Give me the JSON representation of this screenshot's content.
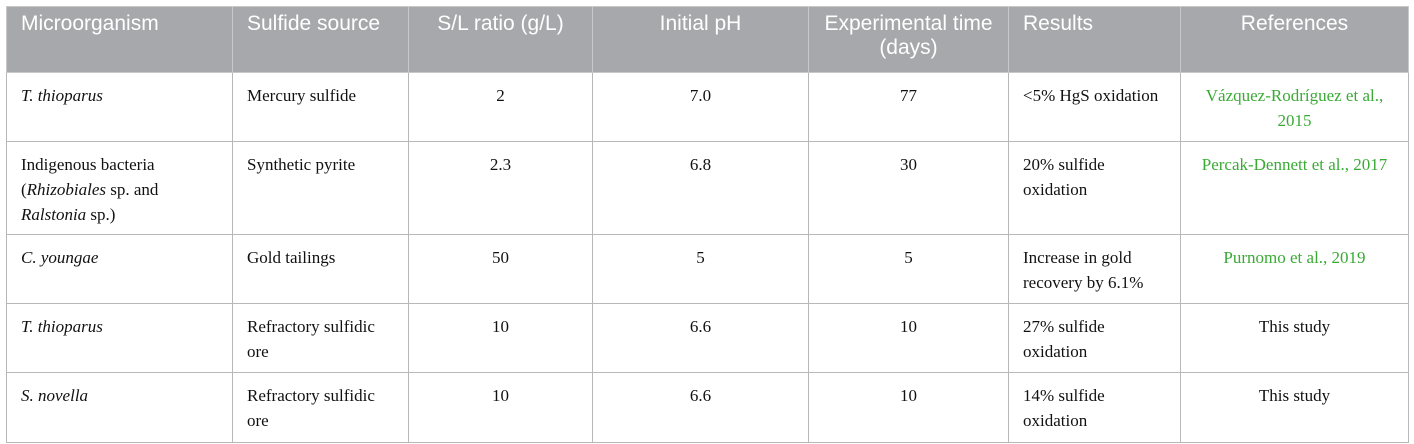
{
  "columns": [
    "Microorganism",
    "Sulfide source",
    "S/L ratio (g/L)",
    "Initial pH",
    "Experimental time (days)",
    "Results",
    "References"
  ],
  "rows": [
    {
      "microorganism": {
        "italic_name": "T. thioparus"
      },
      "sulfide_source": "Mercury sulfide",
      "sl_ratio": "2",
      "initial_ph": "7.0",
      "time_days": "77",
      "results": "<5% HgS oxidation",
      "reference": {
        "text": "Vázquez-Rodríguez et al., 2015",
        "is_link": true
      }
    },
    {
      "microorganism": {
        "prefix": "Indigenous bacteria (",
        "genus1": "Rhizobiales",
        "mid": " sp. and ",
        "genus2": "Ralstonia",
        "suffix": " sp.)"
      },
      "sulfide_source": "Synthetic pyrite",
      "sl_ratio": "2.3",
      "initial_ph": "6.8",
      "time_days": "30",
      "results": "20% sulfide oxidation",
      "reference": {
        "text": "Percak-Dennett et al., 2017",
        "is_link": true
      }
    },
    {
      "microorganism": {
        "italic_name": "C. youngae"
      },
      "sulfide_source": "Gold tailings",
      "sl_ratio": "50",
      "initial_ph": "5",
      "time_days": "5",
      "results": "Increase in gold recovery by 6.1%",
      "reference": {
        "text": "Purnomo et al., 2019",
        "is_link": true
      }
    },
    {
      "microorganism": {
        "italic_name": "T. thioparus"
      },
      "sulfide_source": "Refractory sulfidic ore",
      "sl_ratio": "10",
      "initial_ph": "6.6",
      "time_days": "10",
      "results": "27% sulfide oxidation",
      "reference": {
        "text": "This study",
        "is_link": false
      }
    },
    {
      "microorganism": {
        "italic_name": "S. novella"
      },
      "sulfide_source": "Refractory sulfidic ore",
      "sl_ratio": "10",
      "initial_ph": "6.6",
      "time_days": "10",
      "results": "14% sulfide oxidation",
      "reference": {
        "text": "This study",
        "is_link": false
      }
    }
  ],
  "colors": {
    "header_bg": "#a6a8ab",
    "header_text": "#ffffff",
    "link": "#3aaa35"
  }
}
